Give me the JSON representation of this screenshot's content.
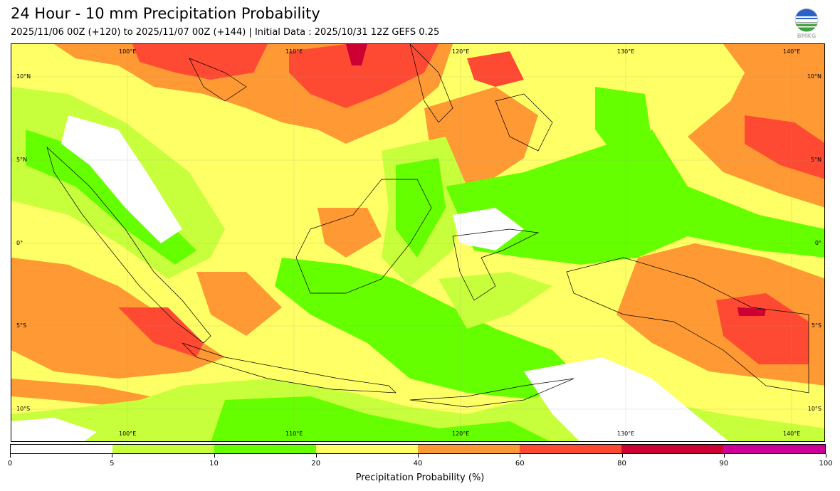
{
  "header": {
    "title": "24 Hour - 10 mm Precipitation Probability",
    "subtitle": "2025/11/06 00Z (+120) to 2025/11/07 00Z (+144) | Initial Data : 2025/10/31 12Z GEFS 0.25",
    "logo_text": "BMKG"
  },
  "map": {
    "lon_labels": [
      "100°E",
      "110°E",
      "120°E",
      "130°E",
      "140°E"
    ],
    "lat_labels": [
      "10°N",
      "5°N",
      "0°",
      "5°S",
      "10°S"
    ]
  },
  "colorbar": {
    "title": "Precipitation Probability (%)",
    "ticks": [
      "0",
      "5",
      "10",
      "20",
      "40",
      "60",
      "80",
      "90",
      "100"
    ],
    "colors": [
      "#ffffff",
      "#c8ff3c",
      "#66ff00",
      "#ffff66",
      "#ff9933",
      "#ff4a33",
      "#cc0033",
      "#cc0099"
    ]
  }
}
